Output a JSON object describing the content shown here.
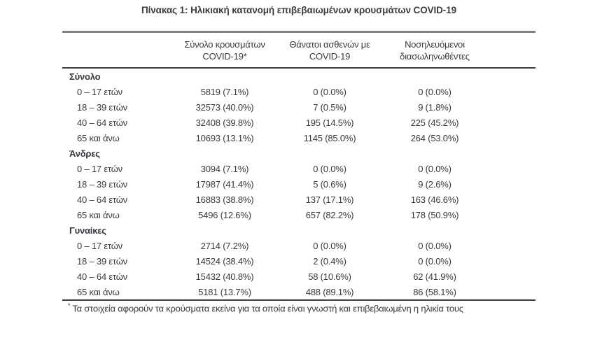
{
  "page": {
    "title": "Πίνακας 1: Ηλικιακή κατανομή επιβεβαιωμένων κρουσμάτων COVID-19"
  },
  "colors": {
    "background": "#ffffff",
    "text": "#3a3a3a",
    "rule_top_gray": "#828282",
    "rule_dark": "#3e3e3e"
  },
  "table": {
    "columns": [
      {
        "line1": "Σύνολο κρουσμάτων",
        "line2": "COVID-19*"
      },
      {
        "line1": "Θάνατοι ασθενών με",
        "line2": "COVID-19"
      },
      {
        "line1": "Νοσηλευόμενοι",
        "line2": "διασωληνωθέντες"
      }
    ],
    "sections": [
      {
        "label": "Σύνολο",
        "rows": [
          {
            "age": "0 – 17 ετών",
            "cases": "5819 (7.1%)",
            "deaths": "0 (0.0%)",
            "intubated": "0 (0.0%)"
          },
          {
            "age": "18 – 39 ετών",
            "cases": "32573 (40.0%)",
            "deaths": "7 (0.5%)",
            "intubated": "9 (1.8%)"
          },
          {
            "age": "40 – 64 ετών",
            "cases": "32408 (39.8%)",
            "deaths": "195 (14.5%)",
            "intubated": "225 (45.2%)"
          },
          {
            "age": "65 και άνω",
            "cases": "10693 (13.1%)",
            "deaths": "1145 (85.0%)",
            "intubated": "264 (53.0%)"
          }
        ]
      },
      {
        "label": "Άνδρες",
        "rows": [
          {
            "age": "0 – 17 ετών",
            "cases": "3094 (7.1%)",
            "deaths": "0 (0.0%)",
            "intubated": "0 (0.0%)"
          },
          {
            "age": "18 – 39 ετών",
            "cases": "17987 (41.4%)",
            "deaths": "5 (0.6%)",
            "intubated": "9 (2.6%)"
          },
          {
            "age": "40 – 64 ετών",
            "cases": "16883 (38.8%)",
            "deaths": "137 (17.1%)",
            "intubated": "163 (46.6%)"
          },
          {
            "age": "65 και άνω",
            "cases": "5496 (12.6%)",
            "deaths": "657 (82.2%)",
            "intubated": "178 (50.9%)"
          }
        ]
      },
      {
        "label": "Γυναίκες",
        "rows": [
          {
            "age": "0 – 17 ετών",
            "cases": "2714 (7.2%)",
            "deaths": "0 (0.0%)",
            "intubated": "0 (0.0%)"
          },
          {
            "age": "18 – 39 ετών",
            "cases": "14524 (38.4%)",
            "deaths": "2 (0.4%)",
            "intubated": "0 (0.0%)"
          },
          {
            "age": "40 – 64 ετών",
            "cases": "15432 (40.8%)",
            "deaths": "58 (10.6%)",
            "intubated": "62 (41.9%)"
          },
          {
            "age": "65 και άνω",
            "cases": "5181 (13.7%)",
            "deaths": "488 (89.1%)",
            "intubated": "86 (58.1%)"
          }
        ]
      }
    ],
    "footnote_marker": "*",
    "footnote": "Τα στοιχεία αφορούν τα κρούσματα εκείνα για τα οποία είναι γνωστή και επιβεβαιωμένη η ηλικία τους"
  }
}
